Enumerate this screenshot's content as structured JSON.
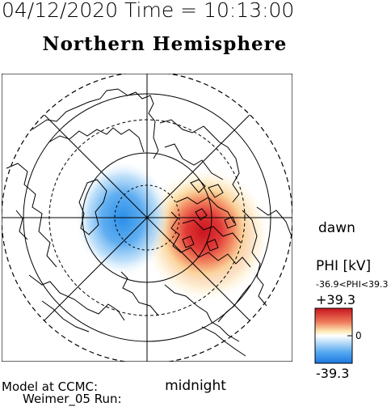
{
  "header": {
    "datetime": "04/12/2020 Time = 10:13:00",
    "title": "Northern Hemisphere"
  },
  "labels": {
    "dawn": "dawn",
    "midnight": "midnight"
  },
  "legend": {
    "title": "PHI [kV]",
    "range_text": "-36.9<PHI<39.3",
    "max_label": "+39.3",
    "zero_label": "0",
    "min_label": "-39.3",
    "colors": {
      "low": "#1f7fe6",
      "zero": "#ffffff",
      "high": "#d0202a"
    }
  },
  "footer": {
    "line1": "Model at CCMC:",
    "line2": "Weimer_05 Run:"
  },
  "map": {
    "potential_max_kV": 39.3,
    "potential_min_kV": -36.9
  }
}
